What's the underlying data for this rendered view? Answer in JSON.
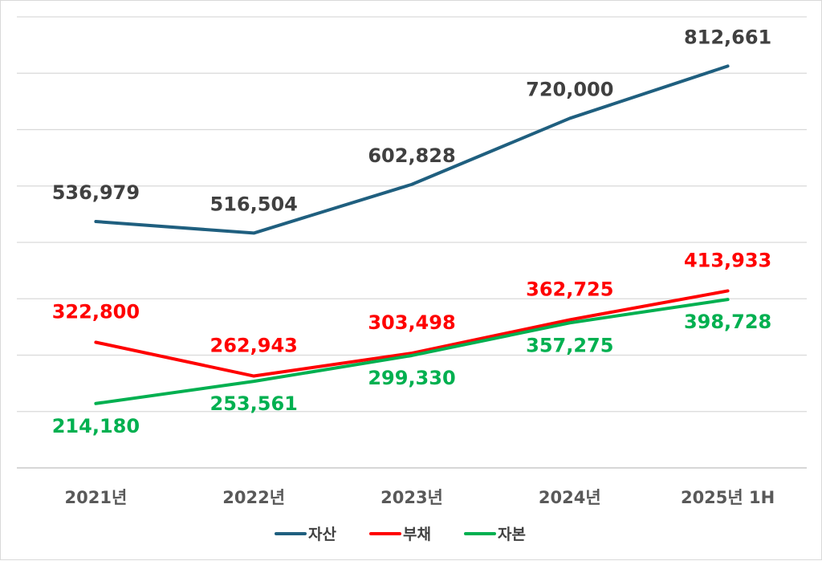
{
  "chart_data": {
    "type": "line",
    "title": "",
    "xlabel": "",
    "ylabel": "",
    "categories": [
      "2021년",
      "2022년",
      "2023년",
      "2024년",
      "2025년 1H"
    ],
    "ylim": [
      100000,
      900000
    ],
    "grid": true,
    "legend_position": "bottom",
    "series": [
      {
        "name": "자산",
        "color": "#1f5f7f",
        "values": [
          536979,
          516504,
          602828,
          720000,
          812661
        ],
        "labels": [
          "536,979",
          "516,504",
          "602,828",
          "720,000",
          "812,661"
        ],
        "label_color": "#404040"
      },
      {
        "name": "부채",
        "color": "#ff0000",
        "values": [
          322800,
          262943,
          303498,
          362725,
          413933
        ],
        "labels": [
          "322,800",
          "262,943",
          "303,498",
          "362,725",
          "413,933"
        ],
        "label_color": "#ff0000"
      },
      {
        "name": "자본",
        "color": "#00b050",
        "values": [
          214180,
          253561,
          299330,
          357275,
          398728
        ],
        "labels": [
          "214,180",
          "253,561",
          "299,330",
          "357,275",
          "398,728"
        ],
        "label_color": "#00b050"
      }
    ]
  }
}
